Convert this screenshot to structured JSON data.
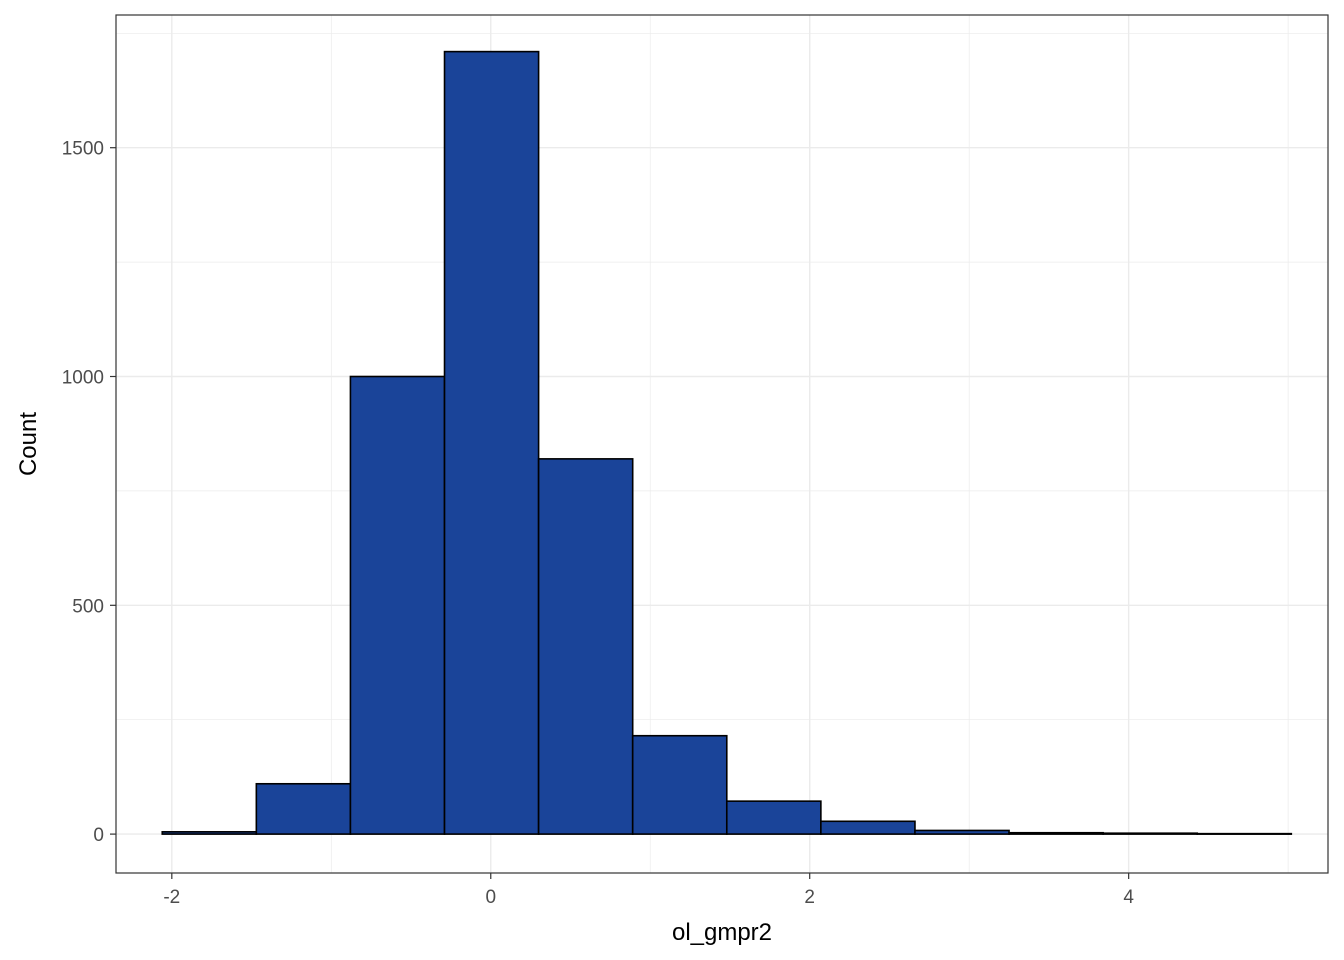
{
  "chart_data": {
    "type": "bar",
    "subtype": "histogram",
    "xlabel": "ol_gmpr2",
    "ylabel": "Count",
    "xlim": [
      -2.35,
      5.25
    ],
    "ylim": [
      -85,
      1790
    ],
    "x_ticks": [
      -2,
      0,
      2,
      4
    ],
    "x_tick_labels": [
      "-2",
      "0",
      "2",
      "4"
    ],
    "y_ticks": [
      0,
      500,
      1000,
      1500
    ],
    "y_tick_labels": [
      "0",
      "500",
      "1000",
      "1500"
    ],
    "grid": true,
    "bins": [
      {
        "x0": -2.06,
        "x1": -1.47,
        "count": 5
      },
      {
        "x0": -1.47,
        "x1": -0.88,
        "count": 110
      },
      {
        "x0": -0.88,
        "x1": -0.29,
        "count": 1000
      },
      {
        "x0": -0.29,
        "x1": 0.3,
        "count": 1710
      },
      {
        "x0": 0.3,
        "x1": 0.89,
        "count": 820
      },
      {
        "x0": 0.89,
        "x1": 1.48,
        "count": 215
      },
      {
        "x0": 1.48,
        "x1": 2.07,
        "count": 72
      },
      {
        "x0": 2.07,
        "x1": 2.66,
        "count": 28
      },
      {
        "x0": 2.66,
        "x1": 3.25,
        "count": 8
      },
      {
        "x0": 3.25,
        "x1": 3.84,
        "count": 3
      },
      {
        "x0": 3.84,
        "x1": 4.43,
        "count": 2
      },
      {
        "x0": 4.43,
        "x1": 5.02,
        "count": 1
      }
    ],
    "colors": {
      "bar_fill": "#1a4499",
      "bar_stroke": "#000000",
      "grid": "#ebebeb",
      "panel_border": "#333333"
    }
  }
}
